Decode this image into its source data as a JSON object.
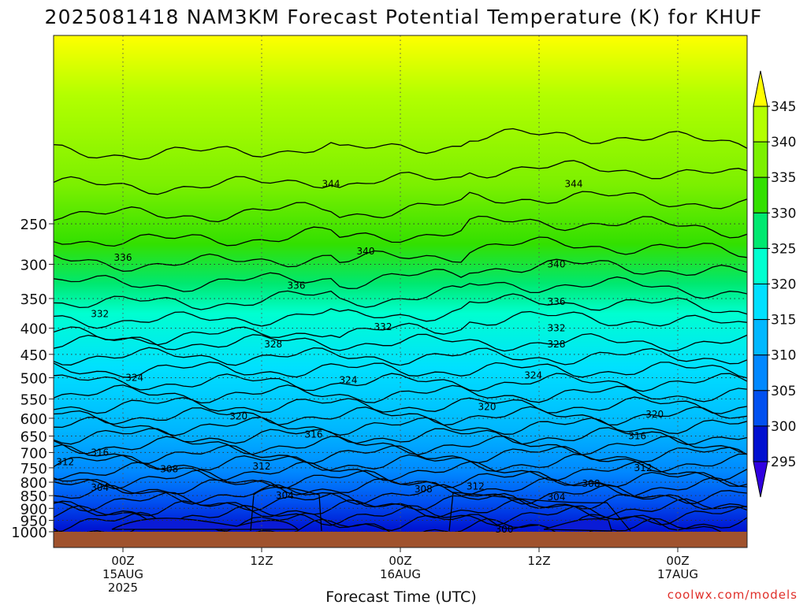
{
  "title": "2025081418 NAM3KM Forecast Potential Temperature (K) for KHUF",
  "footer": "coolwx.com/models",
  "chart_data": {
    "type": "heatmap",
    "title": "2025081418 NAM3KM Forecast Potential Temperature (K) for KHUF",
    "xlabel": "Forecast Time (UTC)",
    "ylabel": "",
    "x_hours_range": [
      0,
      60
    ],
    "y_levels_hpa": [
      "250",
      "300",
      "350",
      "400",
      "450",
      "500",
      "550",
      "600",
      "650",
      "700",
      "750",
      "800",
      "850",
      "900",
      "950",
      "1000"
    ],
    "x_ticks": [
      {
        "hour": 6,
        "lines": [
          "00Z",
          "15AUG",
          "2025"
        ]
      },
      {
        "hour": 18,
        "lines": [
          "12Z"
        ]
      },
      {
        "hour": 30,
        "lines": [
          "00Z",
          "16AUG"
        ]
      },
      {
        "hour": 42,
        "lines": [
          "12Z"
        ]
      },
      {
        "hour": 54,
        "lines": [
          "00Z",
          "17AUG"
        ]
      }
    ],
    "colorbar": {
      "labels": [
        "345",
        "340",
        "335",
        "330",
        "325",
        "320",
        "315",
        "310",
        "305",
        "300",
        "295"
      ],
      "colors": [
        "#ffff00",
        "#b3ff00",
        "#7cf000",
        "#33e000",
        "#00e870",
        "#00ffd0",
        "#00e0ff",
        "#00b8ff",
        "#0088ff",
        "#0050f0",
        "#0010d0",
        "#3000e0"
      ]
    },
    "contour_levels": [
      300,
      304,
      308,
      312,
      316,
      320,
      324,
      328,
      332,
      336,
      340,
      344
    ],
    "contour_labels": [
      {
        "value": "344",
        "hour": 24,
        "p": 209
      },
      {
        "value": "344",
        "hour": 45,
        "p": 209
      },
      {
        "value": "340",
        "hour": 27,
        "p": 283
      },
      {
        "value": "340",
        "hour": 43.5,
        "p": 300
      },
      {
        "value": "336",
        "hour": 6,
        "p": 291
      },
      {
        "value": "336",
        "hour": 21,
        "p": 330
      },
      {
        "value": "336",
        "hour": 43.5,
        "p": 355
      },
      {
        "value": "332",
        "hour": 4,
        "p": 375
      },
      {
        "value": "332",
        "hour": 28.5,
        "p": 398
      },
      {
        "value": "332",
        "hour": 43.5,
        "p": 400
      },
      {
        "value": "328",
        "hour": 19,
        "p": 430
      },
      {
        "value": "328",
        "hour": 43.5,
        "p": 430
      },
      {
        "value": "324",
        "hour": 7,
        "p": 500
      },
      {
        "value": "324",
        "hour": 25.5,
        "p": 505
      },
      {
        "value": "324",
        "hour": 41.5,
        "p": 495
      },
      {
        "value": "320",
        "hour": 37.5,
        "p": 570
      },
      {
        "value": "320",
        "hour": 16,
        "p": 595
      },
      {
        "value": "320",
        "hour": 52,
        "p": 590
      },
      {
        "value": "316",
        "hour": 22.5,
        "p": 645
      },
      {
        "value": "316",
        "hour": 4,
        "p": 700
      },
      {
        "value": "316",
        "hour": 50.5,
        "p": 650
      },
      {
        "value": "312",
        "hour": 1,
        "p": 730
      },
      {
        "value": "312",
        "hour": 18,
        "p": 745
      },
      {
        "value": "312",
        "hour": 51,
        "p": 750
      },
      {
        "value": "312",
        "hour": 36.5,
        "p": 815
      },
      {
        "value": "308",
        "hour": 10,
        "p": 755
      },
      {
        "value": "308",
        "hour": 32,
        "p": 825
      },
      {
        "value": "308",
        "hour": 46.5,
        "p": 805
      },
      {
        "value": "304",
        "hour": 4,
        "p": 820
      },
      {
        "value": "304",
        "hour": 20,
        "p": 850
      },
      {
        "value": "304",
        "hour": 43.5,
        "p": 855
      },
      {
        "value": "300",
        "hour": 39,
        "p": 990
      }
    ]
  }
}
